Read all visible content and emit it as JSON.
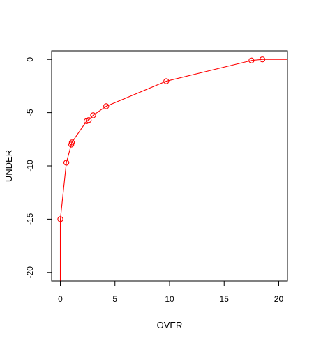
{
  "chart_data": {
    "type": "line",
    "title": "",
    "xlabel": "OVER",
    "ylabel": "UNDER",
    "xlim": [
      -0.8,
      20.8
    ],
    "ylim": [
      -20.8,
      0.8
    ],
    "x_ticks": [
      0,
      5,
      10,
      15,
      20
    ],
    "y_ticks": [
      0,
      -5,
      -10,
      -15,
      -20
    ],
    "x_tick_labels": [
      "0",
      "5",
      "10",
      "15",
      "20"
    ],
    "y_tick_labels": [
      "0",
      "-5",
      "-10",
      "-15",
      "-20"
    ],
    "grid": false,
    "color": "#ff0000",
    "series": [
      {
        "line": [
          {
            "x": 0.0,
            "y": -20.8
          },
          {
            "x": 0.0,
            "y": -15.0
          },
          {
            "x": 0.55,
            "y": -9.7
          },
          {
            "x": 1.0,
            "y": -8.0
          },
          {
            "x": 1.05,
            "y": -7.8
          },
          {
            "x": 2.4,
            "y": -5.8
          },
          {
            "x": 2.6,
            "y": -5.7
          },
          {
            "x": 3.0,
            "y": -5.25
          },
          {
            "x": 4.2,
            "y": -4.4
          },
          {
            "x": 9.7,
            "y": -2.05
          },
          {
            "x": 17.5,
            "y": -0.1
          },
          {
            "x": 18.5,
            "y": 0.0
          },
          {
            "x": 20.8,
            "y": 0.0
          }
        ],
        "points": [
          {
            "x": 0.0,
            "y": -15.0
          },
          {
            "x": 0.55,
            "y": -9.7
          },
          {
            "x": 1.0,
            "y": -8.0
          },
          {
            "x": 1.05,
            "y": -7.8
          },
          {
            "x": 2.4,
            "y": -5.8
          },
          {
            "x": 2.6,
            "y": -5.7
          },
          {
            "x": 3.0,
            "y": -5.25
          },
          {
            "x": 4.2,
            "y": -4.4
          },
          {
            "x": 9.7,
            "y": -2.05
          },
          {
            "x": 17.5,
            "y": -0.1
          },
          {
            "x": 18.5,
            "y": 0.0
          }
        ]
      }
    ]
  }
}
